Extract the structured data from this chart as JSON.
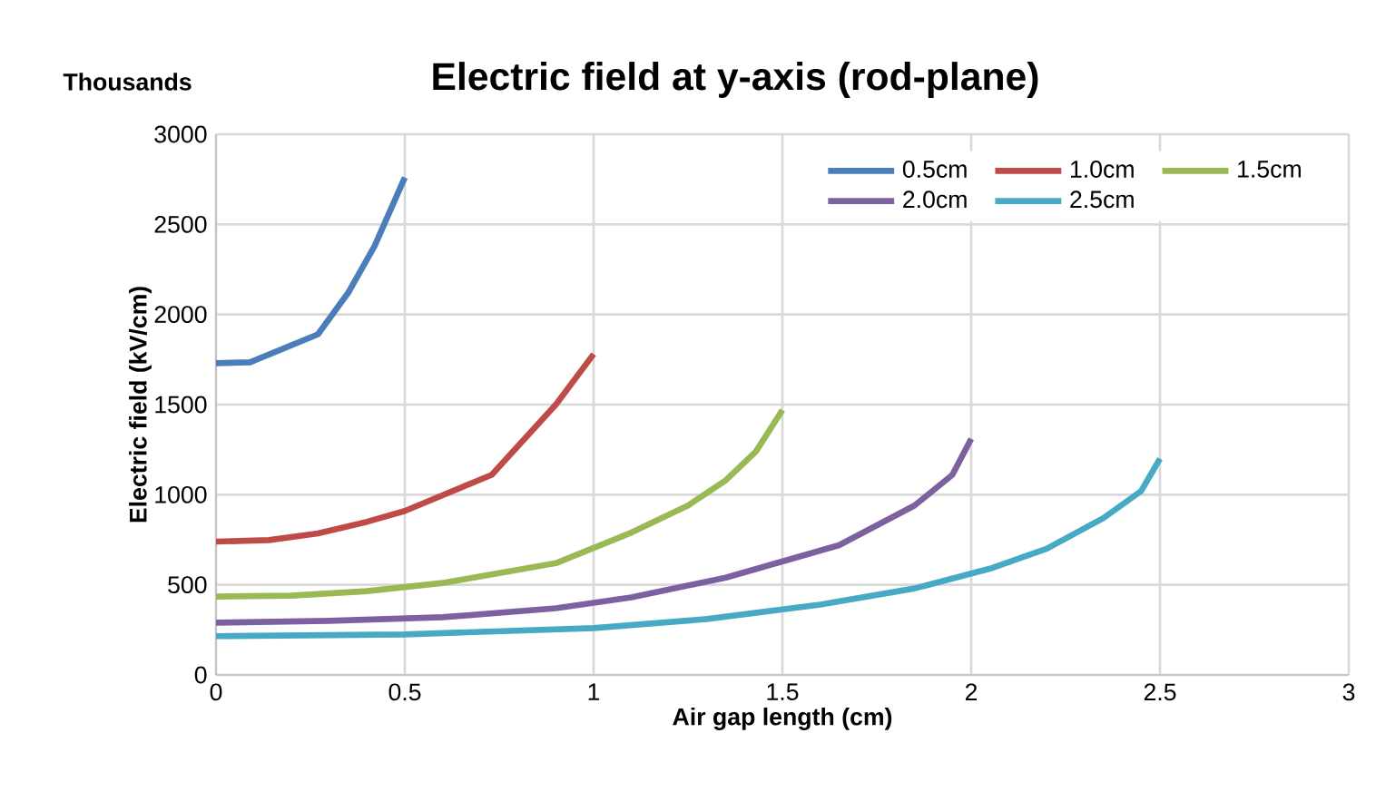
{
  "chart_data": {
    "type": "line",
    "title": "Electric field at y-axis (rod-plane)",
    "xlabel": "Air gap length (cm)",
    "ylabel": "Electric field (kV/cm)",
    "annotations": [
      "Thousands"
    ],
    "xlim": [
      0,
      3
    ],
    "xticks": [
      0,
      0.5,
      1,
      1.5,
      2,
      2.5,
      3
    ],
    "ylim": [
      0,
      3000
    ],
    "yticks": [
      0,
      500,
      1000,
      1500,
      2000,
      2500,
      3000
    ],
    "grid": true,
    "legend": "top right",
    "marker": "none",
    "line_style": "solid",
    "series": [
      {
        "name": "0.5cm",
        "color": "#4a7ebb",
        "x": [
          0,
          0.09,
          0.27,
          0.35,
          0.42,
          0.5
        ],
        "values": [
          1730,
          1735,
          1890,
          2120,
          2380,
          2760
        ]
      },
      {
        "name": "1.0cm",
        "color": "#be4b48",
        "x": [
          0,
          0.14,
          0.27,
          0.4,
          0.5,
          0.73,
          0.9,
          1.0
        ],
        "values": [
          740,
          748,
          785,
          850,
          910,
          1110,
          1500,
          1780
        ]
      },
      {
        "name": "1.5cm",
        "color": "#98b954",
        "x": [
          0,
          0.2,
          0.4,
          0.6,
          0.9,
          1.1,
          1.25,
          1.35,
          1.43,
          1.5
        ],
        "values": [
          435,
          440,
          465,
          510,
          620,
          790,
          940,
          1080,
          1240,
          1470
        ]
      },
      {
        "name": "2.0cm",
        "color": "#7d60a0",
        "x": [
          0,
          0.3,
          0.6,
          0.9,
          1.1,
          1.35,
          1.65,
          1.85,
          1.95,
          2.0
        ],
        "values": [
          290,
          300,
          320,
          370,
          430,
          540,
          720,
          940,
          1110,
          1310
        ]
      },
      {
        "name": "2.5cm",
        "color": "#46aac5",
        "x": [
          0,
          0.5,
          1.0,
          1.3,
          1.6,
          1.85,
          2.05,
          2.2,
          2.35,
          2.45,
          2.5
        ],
        "values": [
          215,
          225,
          260,
          310,
          390,
          480,
          590,
          700,
          870,
          1020,
          1200
        ]
      }
    ]
  }
}
